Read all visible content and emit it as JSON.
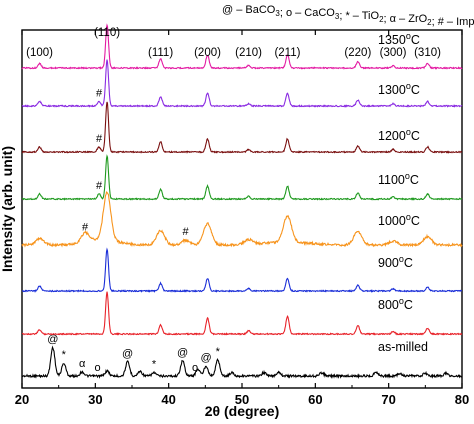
{
  "legend": {
    "items": [
      {
        "symbol": "@",
        "text": "BaCO",
        "sub": "3"
      },
      {
        "symbol": "o",
        "text": "CaCO",
        "sub": "3"
      },
      {
        "symbol": "*",
        "text": "TiO",
        "sub": "2"
      },
      {
        "symbol": "α",
        "text": "ZrO",
        "sub": "2"
      },
      {
        "symbol": "#",
        "text": "Impurity phase",
        "sub": ""
      }
    ]
  },
  "chart_data": {
    "type": "line",
    "xlabel": "2θ (degree)",
    "ylabel": "Intensity (arb. unit)",
    "xlim": [
      20,
      80
    ],
    "xticks": [
      20,
      30,
      40,
      50,
      60,
      70,
      80
    ],
    "xtick_labels": [
      "20",
      "30",
      "40",
      "50",
      "60",
      "70",
      "80"
    ],
    "hkl_labels": [
      {
        "x": 22.4,
        "text": "(100)"
      },
      {
        "x": 31.6,
        "text": "(110)"
      },
      {
        "x": 38.9,
        "text": "(111)"
      },
      {
        "x": 45.3,
        "text": "(200)"
      },
      {
        "x": 50.9,
        "text": "(210)"
      },
      {
        "x": 56.2,
        "text": "(211)"
      },
      {
        "x": 65.8,
        "text": "(220)"
      },
      {
        "x": 70.6,
        "text": "(300)"
      },
      {
        "x": 75.3,
        "text": "(310)"
      }
    ],
    "series": [
      {
        "name": "as-milled",
        "color": "#000000",
        "label": "as-milled",
        "peaks": [
          [
            24.2,
            0.85
          ],
          [
            25.7,
            0.38
          ],
          [
            28.2,
            0.12
          ],
          [
            31.6,
            0.15
          ],
          [
            34.4,
            0.42
          ],
          [
            36.1,
            0.14
          ],
          [
            38.0,
            0.1
          ],
          [
            41.9,
            0.45
          ],
          [
            44.0,
            0.2
          ],
          [
            45.1,
            0.3
          ],
          [
            46.7,
            0.48
          ],
          [
            48.6,
            0.1
          ],
          [
            53.0,
            0.1
          ],
          [
            55.0,
            0.12
          ],
          [
            60.9,
            0.1
          ],
          [
            68.3,
            0.12
          ],
          [
            71.5,
            0.08
          ],
          [
            75.0,
            0.08
          ],
          [
            77.8,
            0.08
          ]
        ],
        "markers": [
          {
            "x": 24.2,
            "text": "@"
          },
          {
            "x": 25.7,
            "text": "*"
          },
          {
            "x": 28.2,
            "text": "α"
          },
          {
            "x": 30.3,
            "text": "o"
          },
          {
            "x": 34.4,
            "text": "@"
          },
          {
            "x": 38.0,
            "text": "*"
          },
          {
            "x": 41.9,
            "text": "@"
          },
          {
            "x": 43.6,
            "text": "o"
          },
          {
            "x": 45.1,
            "text": "@"
          },
          {
            "x": 46.7,
            "text": "*"
          }
        ]
      },
      {
        "name": "800°C",
        "color": "#e8232a",
        "label": "800",
        "unit": "°C",
        "peaks": [
          [
            22.4,
            0.1
          ],
          [
            31.6,
            1.0
          ],
          [
            38.9,
            0.22
          ],
          [
            45.3,
            0.38
          ],
          [
            50.9,
            0.08
          ],
          [
            56.2,
            0.42
          ],
          [
            65.8,
            0.2
          ],
          [
            70.6,
            0.06
          ],
          [
            75.3,
            0.14
          ]
        ],
        "markers": []
      },
      {
        "name": "900°C",
        "color": "#1a2ed8",
        "label": "900",
        "unit": "°C",
        "peaks": [
          [
            22.4,
            0.12
          ],
          [
            31.6,
            1.0
          ],
          [
            38.9,
            0.18
          ],
          [
            45.3,
            0.3
          ],
          [
            50.9,
            0.06
          ],
          [
            56.2,
            0.3
          ],
          [
            65.8,
            0.14
          ],
          [
            70.6,
            0.05
          ],
          [
            75.3,
            0.1
          ]
        ],
        "markers": []
      },
      {
        "name": "1000°C",
        "color": "#f7941d",
        "label": "1000",
        "unit": "°C",
        "peaks": [
          [
            22.4,
            0.14
          ],
          [
            28.6,
            0.2
          ],
          [
            31.6,
            1.0
          ],
          [
            38.9,
            0.3
          ],
          [
            42.3,
            0.1
          ],
          [
            45.3,
            0.45
          ],
          [
            50.9,
            0.1
          ],
          [
            56.2,
            0.55
          ],
          [
            65.8,
            0.28
          ],
          [
            70.6,
            0.08
          ],
          [
            75.3,
            0.18
          ]
        ],
        "markers": [
          {
            "x": 28.6,
            "text": "#"
          },
          {
            "x": 42.3,
            "text": "#"
          }
        ]
      },
      {
        "name": "1100°C",
        "color": "#1f9a1f",
        "label": "1100",
        "unit": "°C",
        "peaks": [
          [
            22.4,
            0.12
          ],
          [
            30.5,
            0.12
          ],
          [
            31.6,
            1.0
          ],
          [
            38.9,
            0.22
          ],
          [
            45.3,
            0.3
          ],
          [
            50.9,
            0.06
          ],
          [
            56.2,
            0.3
          ],
          [
            65.8,
            0.14
          ],
          [
            70.6,
            0.05
          ],
          [
            75.3,
            0.12
          ]
        ],
        "markers": [
          {
            "x": 30.5,
            "text": "#"
          }
        ]
      },
      {
        "name": "1200°C",
        "color": "#7a1010",
        "label": "1200",
        "unit": "°C",
        "peaks": [
          [
            22.4,
            0.1
          ],
          [
            30.5,
            0.1
          ],
          [
            31.6,
            1.0
          ],
          [
            38.9,
            0.2
          ],
          [
            45.3,
            0.26
          ],
          [
            50.9,
            0.05
          ],
          [
            56.2,
            0.26
          ],
          [
            65.8,
            0.12
          ],
          [
            70.6,
            0.05
          ],
          [
            75.3,
            0.1
          ]
        ],
        "markers": [
          {
            "x": 30.5,
            "text": "#"
          }
        ]
      },
      {
        "name": "1300°C",
        "color": "#8a2be2",
        "label": "1300",
        "unit": "°C",
        "peaks": [
          [
            22.4,
            0.1
          ],
          [
            30.5,
            0.1
          ],
          [
            31.6,
            1.0
          ],
          [
            38.9,
            0.2
          ],
          [
            45.3,
            0.28
          ],
          [
            50.9,
            0.05
          ],
          [
            56.2,
            0.28
          ],
          [
            65.8,
            0.13
          ],
          [
            70.6,
            0.05
          ],
          [
            75.3,
            0.1
          ]
        ],
        "markers": [
          {
            "x": 30.5,
            "text": "#"
          }
        ]
      },
      {
        "name": "1350°C",
        "color": "#e31ba3",
        "label": "1350",
        "unit": "°C",
        "peaks": [
          [
            22.4,
            0.1
          ],
          [
            31.6,
            1.0
          ],
          [
            38.9,
            0.22
          ],
          [
            45.3,
            0.3
          ],
          [
            50.9,
            0.06
          ],
          [
            56.2,
            0.3
          ],
          [
            65.8,
            0.14
          ],
          [
            70.6,
            0.05
          ],
          [
            75.3,
            0.11
          ]
        ],
        "markers": []
      }
    ]
  }
}
